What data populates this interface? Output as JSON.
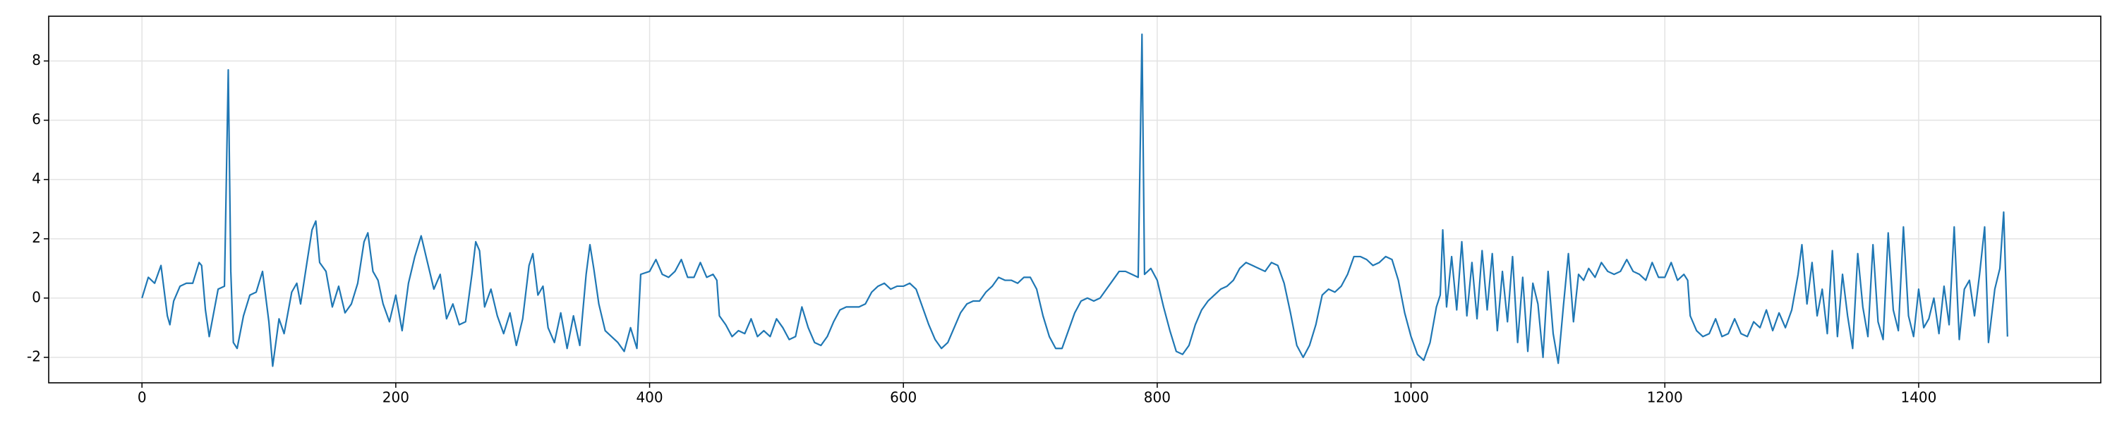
{
  "chart_data": {
    "type": "line",
    "color": "#1f77b4",
    "grid": true,
    "xlim": [
      -73.5,
      1543.5
    ],
    "ylim": [
      -2.86,
      9.51
    ],
    "xticks": [
      0,
      200,
      400,
      600,
      800,
      1000,
      1200,
      1400
    ],
    "yticks": [
      -2,
      0,
      2,
      4,
      6,
      8
    ],
    "x": [
      0,
      5,
      10,
      15,
      20,
      22,
      25,
      30,
      35,
      40,
      45,
      47,
      50,
      53,
      60,
      65,
      68,
      70,
      72,
      75,
      80,
      85,
      90,
      95,
      100,
      103,
      108,
      112,
      118,
      122,
      125,
      130,
      134,
      137,
      140,
      145,
      150,
      155,
      160,
      165,
      170,
      175,
      178,
      182,
      186,
      190,
      195,
      200,
      205,
      210,
      215,
      220,
      225,
      230,
      235,
      240,
      245,
      250,
      255,
      260,
      263,
      266,
      270,
      275,
      280,
      285,
      290,
      295,
      300,
      305,
      308,
      312,
      316,
      320,
      325,
      330,
      335,
      340,
      345,
      350,
      353,
      356,
      360,
      365,
      370,
      375,
      380,
      385,
      390,
      393,
      400,
      405,
      410,
      415,
      420,
      425,
      430,
      435,
      440,
      445,
      450,
      453,
      455,
      460,
      465,
      470,
      475,
      480,
      485,
      490,
      495,
      500,
      505,
      510,
      515,
      520,
      525,
      530,
      535,
      540,
      545,
      550,
      555,
      560,
      565,
      570,
      575,
      580,
      585,
      590,
      595,
      600,
      605,
      610,
      615,
      620,
      625,
      630,
      635,
      640,
      645,
      650,
      655,
      660,
      665,
      670,
      675,
      680,
      685,
      690,
      695,
      700,
      705,
      710,
      715,
      720,
      725,
      730,
      735,
      740,
      745,
      750,
      755,
      760,
      765,
      770,
      775,
      780,
      785,
      788,
      790,
      795,
      800,
      805,
      810,
      815,
      820,
      825,
      830,
      835,
      840,
      845,
      850,
      855,
      860,
      865,
      870,
      875,
      880,
      885,
      890,
      895,
      900,
      905,
      910,
      915,
      920,
      925,
      930,
      935,
      940,
      945,
      950,
      955,
      960,
      965,
      970,
      975,
      980,
      985,
      990,
      995,
      1000,
      1005,
      1010,
      1015,
      1020,
      1023,
      1025,
      1028,
      1032,
      1036,
      1040,
      1044,
      1048,
      1052,
      1056,
      1060,
      1064,
      1068,
      1072,
      1076,
      1080,
      1084,
      1088,
      1092,
      1096,
      1100,
      1104,
      1108,
      1112,
      1116,
      1120,
      1124,
      1128,
      1132,
      1136,
      1140,
      1145,
      1150,
      1155,
      1160,
      1165,
      1170,
      1175,
      1180,
      1185,
      1190,
      1195,
      1200,
      1205,
      1210,
      1215,
      1218,
      1220,
      1225,
      1230,
      1235,
      1240,
      1245,
      1250,
      1255,
      1260,
      1265,
      1270,
      1275,
      1280,
      1285,
      1290,
      1295,
      1300,
      1305,
      1308,
      1312,
      1316,
      1320,
      1324,
      1328,
      1332,
      1336,
      1340,
      1344,
      1348,
      1352,
      1356,
      1360,
      1364,
      1368,
      1372,
      1376,
      1380,
      1384,
      1388,
      1392,
      1396,
      1400,
      1404,
      1408,
      1412,
      1416,
      1420,
      1424,
      1428,
      1432,
      1436,
      1440,
      1444,
      1448,
      1452,
      1455,
      1460,
      1464,
      1467,
      1470
    ],
    "values": [
      0,
      0.7,
      0.5,
      1.1,
      -0.6,
      -0.9,
      -0.1,
      0.4,
      0.5,
      0.5,
      1.2,
      1.1,
      -0.4,
      -1.3,
      0.3,
      0.4,
      7.7,
      0.9,
      -1.5,
      -1.7,
      -0.6,
      0.1,
      0.2,
      0.9,
      -0.8,
      -2.3,
      -0.7,
      -1.2,
      0.2,
      0.5,
      -0.2,
      1.2,
      2.3,
      2.6,
      1.2,
      0.9,
      -0.3,
      0.4,
      -0.5,
      -0.2,
      0.5,
      1.9,
      2.2,
      0.9,
      0.6,
      -0.2,
      -0.8,
      0.1,
      -1.1,
      0.5,
      1.4,
      2.1,
      1.2,
      0.3,
      0.8,
      -0.7,
      -0.2,
      -0.9,
      -0.8,
      0.8,
      1.9,
      1.6,
      -0.3,
      0.3,
      -0.6,
      -1.2,
      -0.5,
      -1.6,
      -0.7,
      1.1,
      1.5,
      0.1,
      0.4,
      -1.0,
      -1.5,
      -0.5,
      -1.7,
      -0.6,
      -1.6,
      0.8,
      1.8,
      1.0,
      -0.2,
      -1.1,
      -1.3,
      -1.5,
      -1.8,
      -1.0,
      -1.7,
      0.8,
      0.9,
      1.3,
      0.8,
      0.7,
      0.9,
      1.3,
      0.7,
      0.7,
      1.2,
      0.7,
      0.8,
      0.6,
      -0.6,
      -0.9,
      -1.3,
      -1.1,
      -1.2,
      -0.7,
      -1.3,
      -1.1,
      -1.3,
      -0.7,
      -1.0,
      -1.4,
      -1.3,
      -0.3,
      -1.0,
      -1.5,
      -1.6,
      -1.3,
      -0.8,
      -0.4,
      -0.3,
      -0.3,
      -0.3,
      -0.2,
      0.2,
      0.4,
      0.5,
      0.3,
      0.4,
      0.4,
      0.5,
      0.3,
      -0.3,
      -0.9,
      -1.4,
      -1.7,
      -1.5,
      -1.0,
      -0.5,
      -0.2,
      -0.1,
      -0.1,
      0.2,
      0.4,
      0.7,
      0.6,
      0.6,
      0.5,
      0.7,
      0.7,
      0.3,
      -0.6,
      -1.3,
      -1.7,
      -1.7,
      -1.1,
      -0.5,
      -0.1,
      0.0,
      -0.1,
      0.0,
      0.3,
      0.6,
      0.9,
      0.9,
      0.8,
      0.7,
      8.9,
      0.8,
      1.0,
      0.6,
      -0.3,
      -1.1,
      -1.8,
      -1.9,
      -1.6,
      -0.9,
      -0.4,
      -0.1,
      0.1,
      0.3,
      0.4,
      0.6,
      1.0,
      1.2,
      1.1,
      1.0,
      0.9,
      1.2,
      1.1,
      0.5,
      -0.5,
      -1.6,
      -2.0,
      -1.6,
      -0.9,
      0.1,
      0.3,
      0.2,
      0.4,
      0.8,
      1.4,
      1.4,
      1.3,
      1.1,
      1.2,
      1.4,
      1.3,
      0.6,
      -0.5,
      -1.3,
      -1.9,
      -2.1,
      -1.5,
      -0.3,
      0.1,
      2.3,
      -0.3,
      1.4,
      -0.4,
      1.9,
      -0.6,
      1.2,
      -0.7,
      1.6,
      -0.4,
      1.5,
      -1.1,
      0.9,
      -0.8,
      1.4,
      -1.5,
      0.7,
      -1.8,
      0.5,
      -0.2,
      -2.0,
      0.9,
      -1.2,
      -2.2,
      -0.3,
      1.5,
      -0.8,
      0.8,
      0.6,
      1.0,
      0.7,
      1.2,
      0.9,
      0.8,
      0.9,
      1.3,
      0.9,
      0.8,
      0.6,
      1.2,
      0.7,
      0.7,
      1.2,
      0.6,
      0.8,
      0.6,
      -0.6,
      -1.1,
      -1.3,
      -1.2,
      -0.7,
      -1.3,
      -1.2,
      -0.7,
      -1.2,
      -1.3,
      -0.8,
      -1.0,
      -0.4,
      -1.1,
      -0.5,
      -1.0,
      -0.4,
      0.8,
      1.8,
      -0.2,
      1.2,
      -0.6,
      0.3,
      -1.2,
      1.6,
      -1.3,
      0.8,
      -0.6,
      -1.7,
      1.5,
      -0.3,
      -1.3,
      1.8,
      -0.8,
      -1.4,
      2.2,
      -0.4,
      -1.1,
      2.4,
      -0.6,
      -1.3,
      0.3,
      -1.0,
      -0.7,
      0.0,
      -1.2,
      0.4,
      -0.9,
      2.4,
      -1.4,
      0.3,
      0.6,
      -0.6,
      0.8,
      2.4,
      -1.5,
      0.3,
      1.0,
      2.9,
      -1.3
    ]
  }
}
